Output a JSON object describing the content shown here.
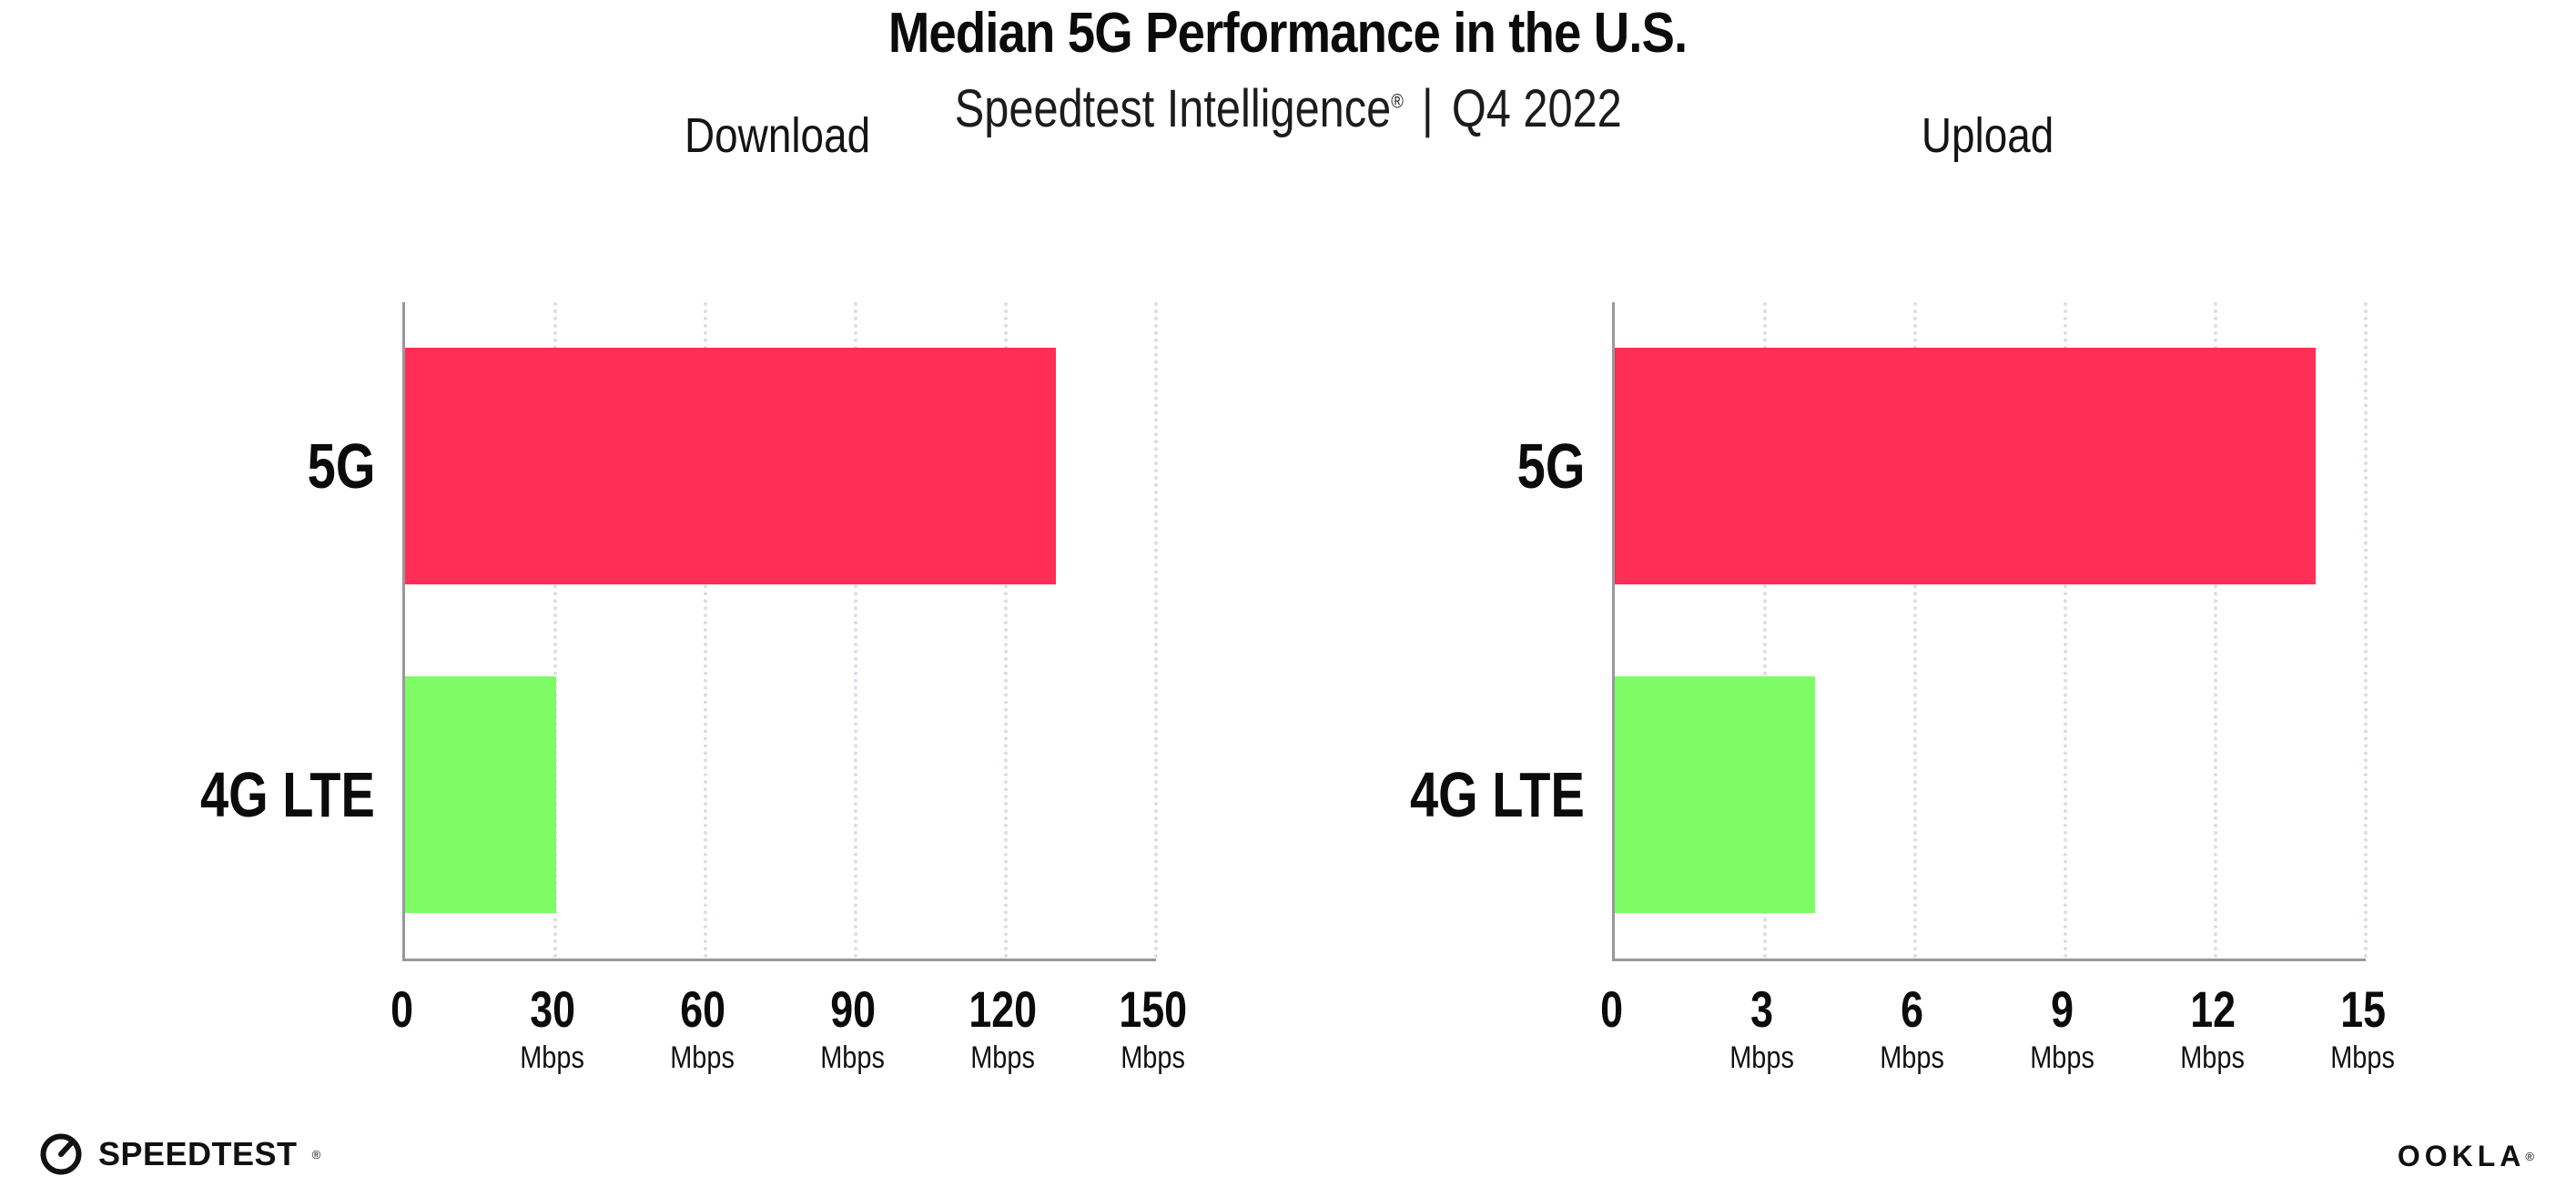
{
  "title": "Median 5G Performance in the U.S.",
  "subtitle": {
    "brand": "Speedtest Intelligence",
    "reg_mark": "®",
    "separator": "|",
    "period": "Q4 2022"
  },
  "footer": {
    "speedtest_logo_text": "SPEEDTEST",
    "speedtest_reg_mark": "®",
    "ookla_logo_text": "OOKLA",
    "ookla_reg_mark": "®",
    "gauge_icon": "speedometer-gauge"
  },
  "colors": {
    "bar_5g": "#ff2e56",
    "bar_4g_lte": "#7dfc66",
    "gridline": "#dcdde8",
    "axis": "#97979d",
    "text": "#0b0b0b"
  },
  "chart_data": [
    {
      "type": "bar",
      "orientation": "horizontal",
      "title": "Download",
      "categories": [
        "5G",
        "4G LTE"
      ],
      "values": [
        130,
        30.2
      ],
      "bar_colors": [
        "#ff2e56",
        "#7dfc66"
      ],
      "xlim": [
        0,
        150
      ],
      "xticks": [
        0,
        30,
        60,
        90,
        120,
        150
      ],
      "tick_unit": "Mbps",
      "unit_on_zero": false,
      "grid": "dotted-vertical",
      "legend": "none"
    },
    {
      "type": "bar",
      "orientation": "horizontal",
      "title": "Upload",
      "categories": [
        "5G",
        "4G LTE"
      ],
      "values": [
        14,
        4
      ],
      "bar_colors": [
        "#ff2e56",
        "#7dfc66"
      ],
      "xlim": [
        0,
        15
      ],
      "xticks": [
        0,
        3,
        6,
        9,
        12,
        15
      ],
      "tick_unit": "Mbps",
      "unit_on_zero": false,
      "grid": "dotted-vertical",
      "legend": "none"
    }
  ]
}
